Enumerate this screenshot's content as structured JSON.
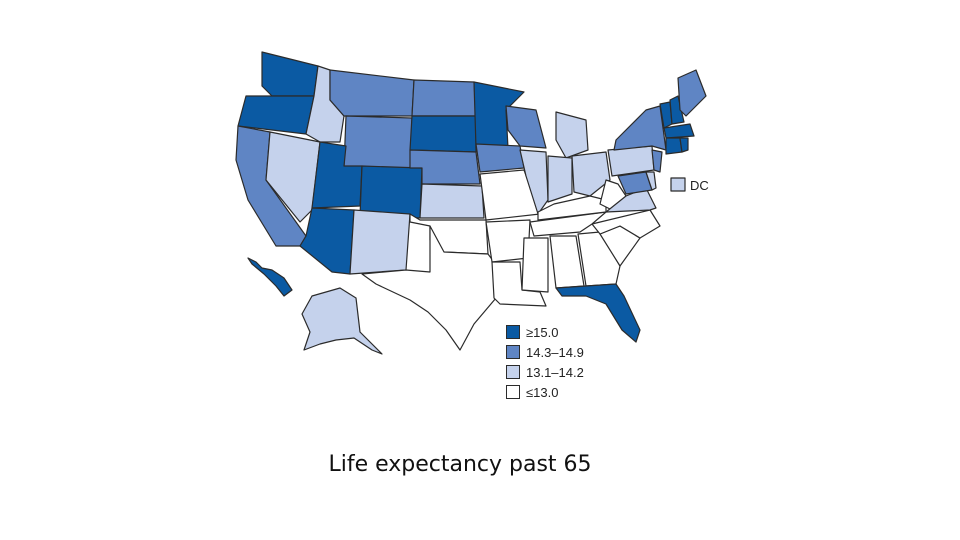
{
  "caption": "Life expectancy past 65",
  "dc_label": "DC",
  "legend": [
    {
      "label": "≥15.0",
      "color": "#0b5aa3"
    },
    {
      "label": "14.3–14.9",
      "color": "#5f85c4"
    },
    {
      "label": "13.1–14.2",
      "color": "#c5d2ec"
    },
    {
      "label": "≤13.0",
      "color": "#ffffff"
    }
  ],
  "state_classes": {
    "WA": 0,
    "OR": 0,
    "UT": 0,
    "CO": 0,
    "AZ": 0,
    "SD": 0,
    "MN": 0,
    "FL": 0,
    "HI": 0,
    "VT": 0,
    "NH": 0,
    "CT": 0,
    "MA": 0,
    "RI": 0,
    "MT": 1,
    "WY": 1,
    "CA": 1,
    "NE": 1,
    "ND": 1,
    "IA": 1,
    "WI": 1,
    "NY": 1,
    "ME": 1,
    "NJ": 1,
    "MD": 1,
    "ID": 2,
    "NV": 2,
    "NM": 2,
    "KS": 2,
    "IL": 2,
    "IN": 2,
    "MI": 2,
    "OH": 2,
    "PA": 2,
    "VA": 2,
    "DE": 2,
    "AK": 2,
    "DC": 2,
    "TX": 3,
    "OK": 3,
    "AR": 3,
    "LA": 3,
    "MS": 3,
    "AL": 3,
    "GA": 3,
    "SC": 3,
    "NC": 3,
    "TN": 3,
    "KY": 3,
    "WV": 3,
    "MO": 3
  }
}
